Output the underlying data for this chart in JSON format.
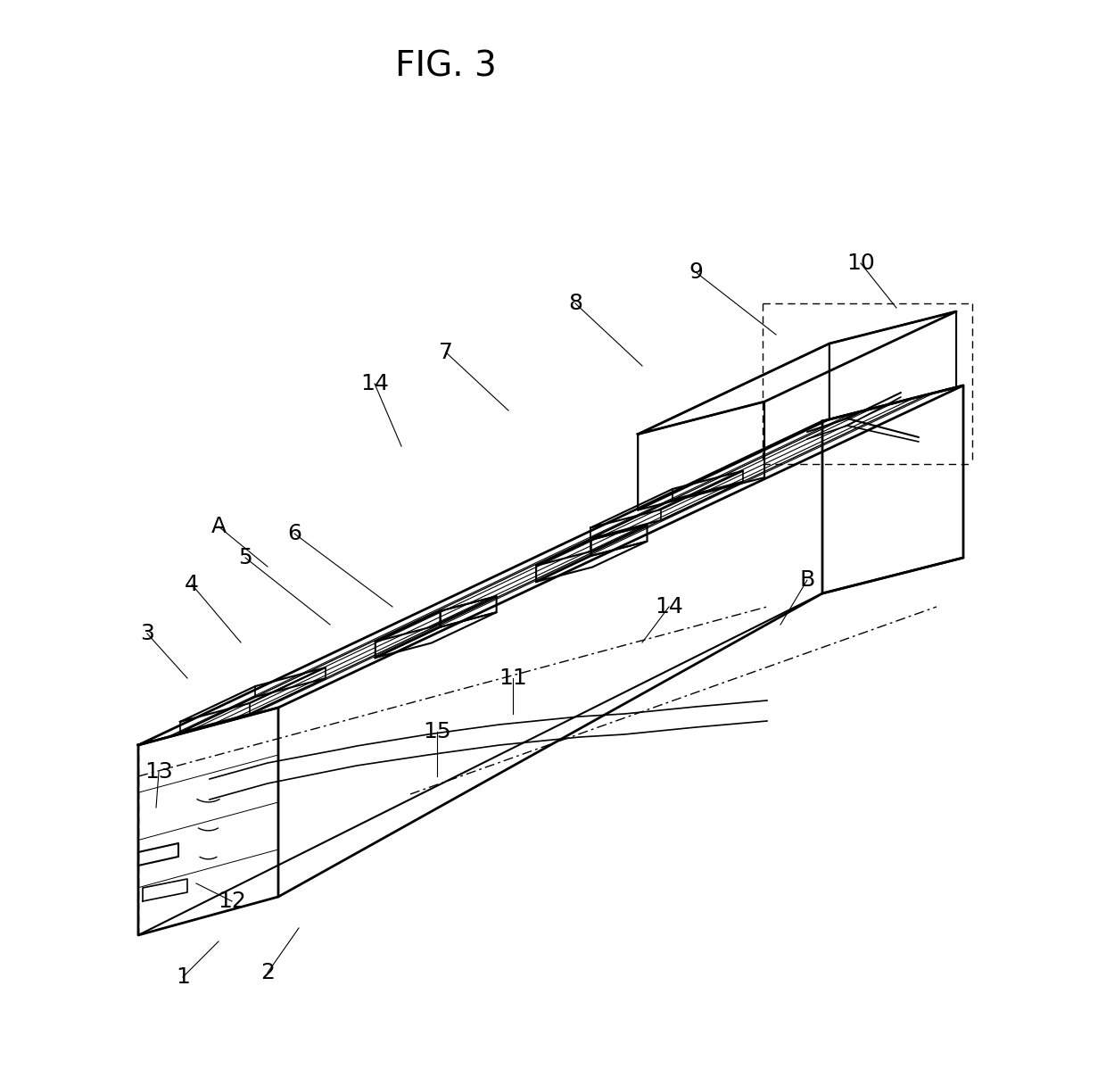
{
  "title": "FIG. 3",
  "background_color": "#ffffff",
  "line_color": "#000000",
  "title_fontsize": 28,
  "label_fontsize": 18,
  "figsize": [
    12.4,
    11.98
  ],
  "dpi": 100
}
